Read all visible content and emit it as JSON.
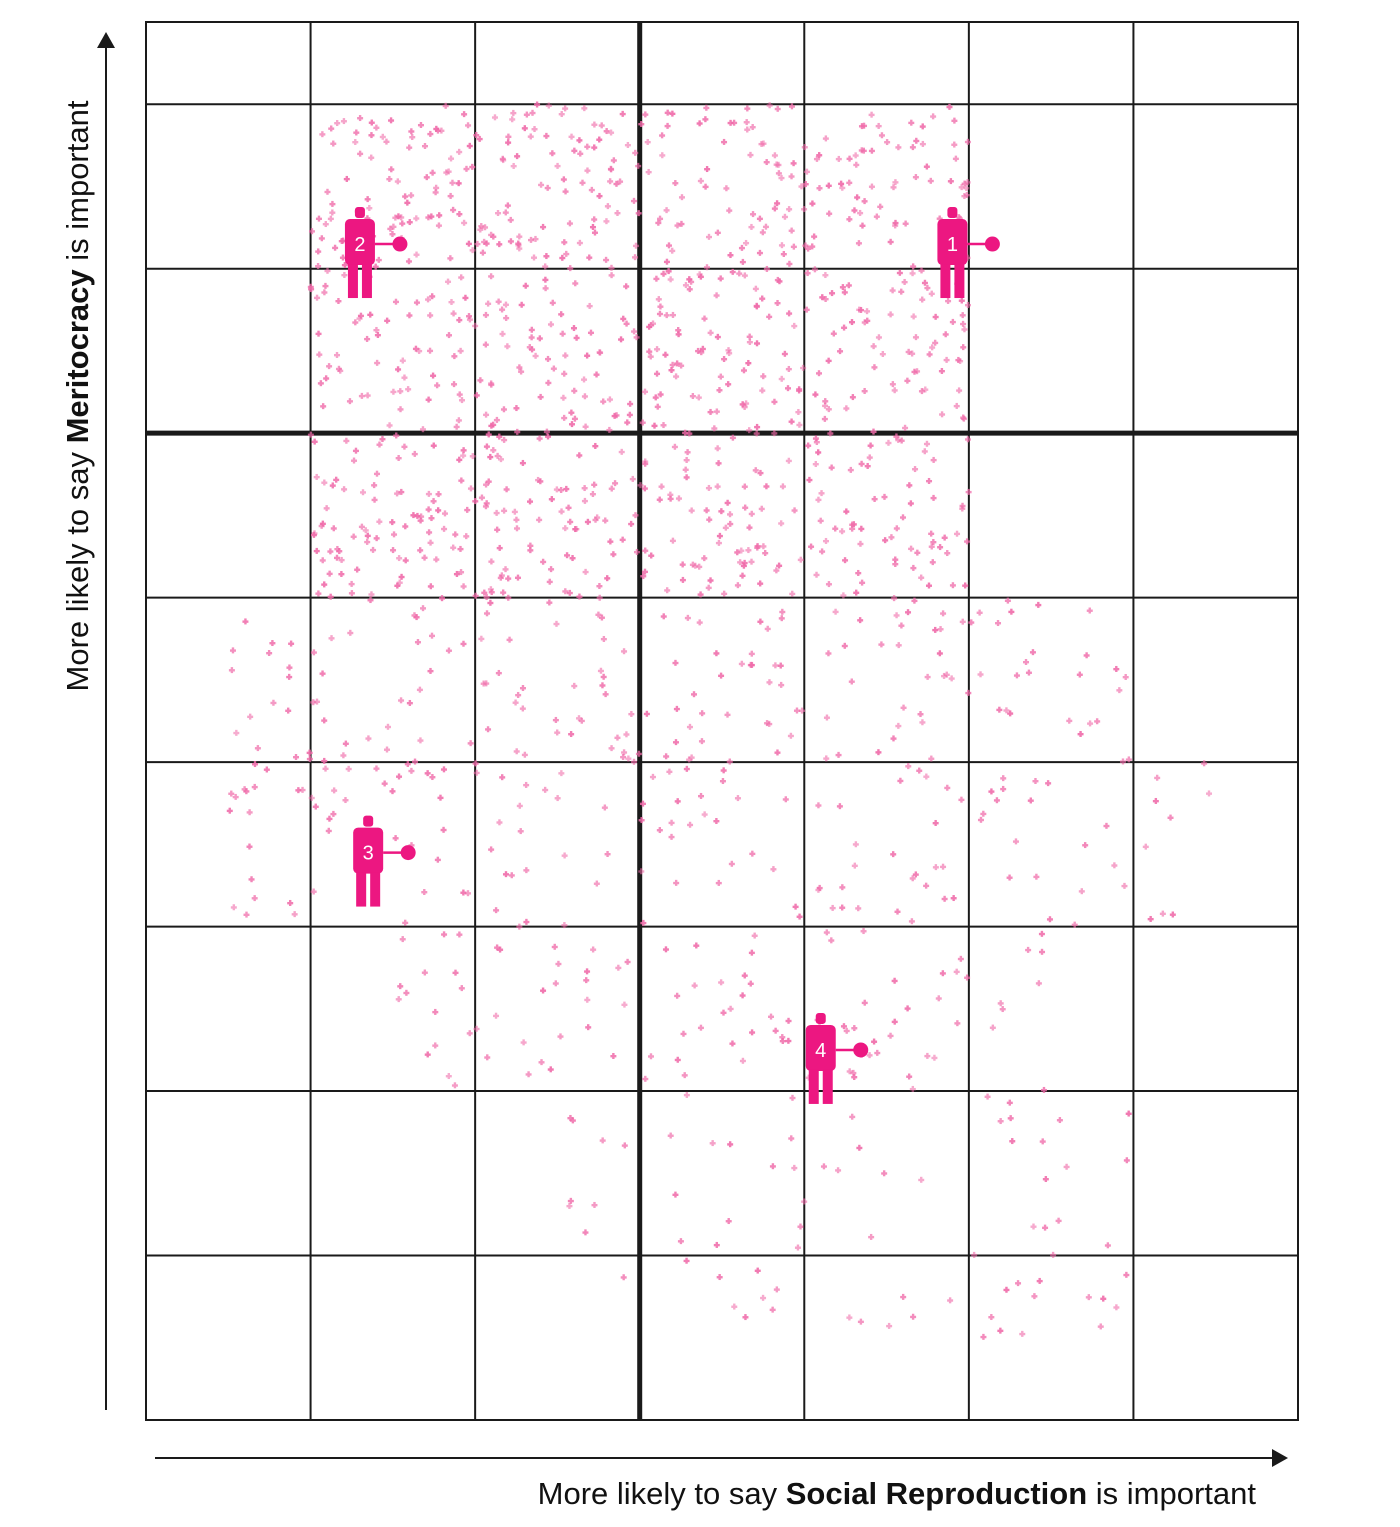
{
  "chart_data": {
    "type": "scatter",
    "title": "",
    "xlabel": {
      "prefix": "More likely to say ",
      "bold": "Social Reproduction",
      "suffix": " is important"
    },
    "ylabel": {
      "prefix": "More likely to say ",
      "bold": "Meritocracy",
      "suffix": " is important"
    },
    "grid": true,
    "xlim": [
      0,
      7
    ],
    "ylim": [
      0,
      8.5
    ],
    "center_lines": {
      "x": 3,
      "y": 6
    },
    "point_color": "#f06aa9",
    "figure_color": "#ec1781",
    "cloud": {
      "count": 1500,
      "density_by_region": [
        {
          "x_range": [
            1.0,
            5.0
          ],
          "y_range": [
            6.0,
            8.0
          ],
          "weight": 0.44
        },
        {
          "x_range": [
            1.0,
            5.0
          ],
          "y_range": [
            5.0,
            6.0
          ],
          "weight": 0.22
        },
        {
          "x_range": [
            0.5,
            6.0
          ],
          "y_range": [
            4.0,
            5.0
          ],
          "weight": 0.12
        },
        {
          "x_range": [
            0.5,
            6.5
          ],
          "y_range": [
            3.0,
            4.0
          ],
          "weight": 0.1
        },
        {
          "x_range": [
            1.5,
            5.5
          ],
          "y_range": [
            2.0,
            3.0
          ],
          "weight": 0.07
        },
        {
          "x_range": [
            2.5,
            6.0
          ],
          "y_range": [
            0.5,
            2.0
          ],
          "weight": 0.05
        }
      ]
    },
    "representatives": [
      {
        "label": "1",
        "x": 4.9,
        "y": 7.15
      },
      {
        "label": "2",
        "x": 1.3,
        "y": 7.15
      },
      {
        "label": "3",
        "x": 1.35,
        "y": 3.45
      },
      {
        "label": "4",
        "x": 4.1,
        "y": 2.25
      }
    ]
  }
}
